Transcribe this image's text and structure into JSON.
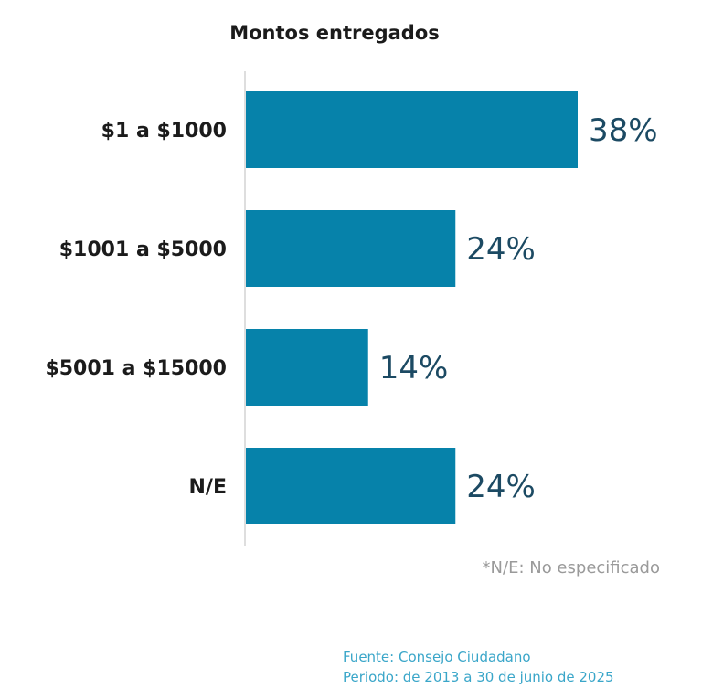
{
  "chart_data": {
    "type": "bar",
    "orientation": "horizontal",
    "title": "Montos entregados",
    "categories": [
      "$1 a $1000",
      "$1001 a $5000",
      "$5001 a $15000",
      "N/E"
    ],
    "values": [
      38,
      24,
      14,
      24
    ],
    "value_labels": [
      "38%",
      "24%",
      "14%",
      "24%"
    ],
    "xlim": [
      0,
      38
    ],
    "grid": false,
    "legend": "none",
    "bar_color": "#0682aa",
    "label_color": "#1c4a63"
  },
  "footnote": "*N/E: No especificado",
  "source_line": "Fuente: Consejo Ciudadano",
  "period_line": "Periodo: de 2013 a 30 de junio de 2025"
}
